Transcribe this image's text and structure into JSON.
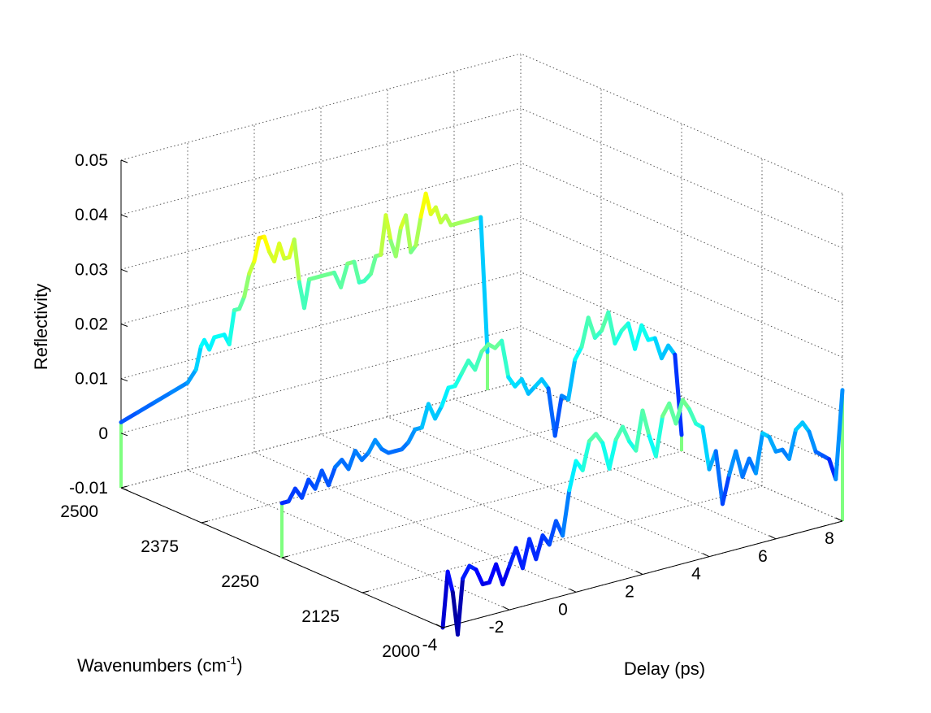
{
  "chart_data": {
    "type": "line",
    "projection": "3d",
    "colormap": "jet",
    "color_range": [
      -0.01,
      0.05
    ],
    "grid": true,
    "title": "",
    "xlabel": "Delay (ps)",
    "ylabel": "Wavenumbers (cm-1)",
    "ylabel_main": "Wavenumbers (cm",
    "ylabel_sup": "-1",
    "ylabel_end": ")",
    "zlabel": "Reflectivity",
    "xlim": [
      -4,
      8
    ],
    "ylim": [
      2000,
      2500
    ],
    "zlim": [
      -0.01,
      0.05
    ],
    "xticks": [
      "-4",
      "-2",
      "0",
      "2",
      "4",
      "6",
      "8"
    ],
    "yticks": [
      "2000",
      "2125",
      "2250",
      "2375",
      "2500"
    ],
    "zticks": [
      "-0.01",
      "0",
      "0.01",
      "0.02",
      "0.03",
      "0.04",
      "0.05"
    ],
    "series": [
      {
        "wavenumber": 2500,
        "x": [
          -4.0,
          -3.5,
          -3.0,
          -2.5,
          -2.0,
          -1.75,
          -1.6,
          -1.5,
          -1.35,
          -1.2,
          -1.05,
          -0.9,
          -0.75,
          -0.6,
          -0.45,
          -0.3,
          -0.15,
          0.0,
          0.15,
          0.3,
          0.45,
          0.6,
          0.75,
          0.9,
          1.05,
          1.2,
          1.35,
          1.5,
          1.65,
          1.8,
          2.0,
          2.2,
          2.4,
          2.6,
          2.8,
          3.0,
          3.15,
          3.3,
          3.5,
          3.65,
          3.8,
          3.95,
          4.1,
          4.25,
          4.4,
          4.55,
          4.7,
          4.85,
          5.0,
          5.15,
          5.3,
          5.45,
          5.6,
          5.75,
          5.9,
          6.05,
          6.2,
          6.4,
          6.6,
          6.8,
          7.0
        ],
        "z": [
          0.002,
          0.003,
          0.004,
          0.005,
          0.006,
          0.008,
          0.012,
          0.013,
          0.011,
          0.013,
          0.013,
          0.013,
          0.011,
          0.017,
          0.017,
          0.019,
          0.023,
          0.025,
          0.029,
          0.029,
          0.026,
          0.024,
          0.027,
          0.024,
          0.024,
          0.027,
          0.019,
          0.014,
          0.019,
          0.019,
          0.019,
          0.019,
          0.019,
          0.016,
          0.02,
          0.02,
          0.016,
          0.016,
          0.017,
          0.02,
          0.02,
          0.027,
          0.022,
          0.019,
          0.024,
          0.026,
          0.019,
          0.02,
          0.025,
          0.029,
          0.025,
          0.026,
          0.023,
          0.024,
          0.022,
          0.022,
          0.022,
          0.022,
          0.022,
          0.022,
          -0.003
        ]
      },
      {
        "wavenumber": 2250,
        "x": [
          -4.0,
          -3.8,
          -3.6,
          -3.4,
          -3.2,
          -3.0,
          -2.8,
          -2.6,
          -2.4,
          -2.2,
          -2.0,
          -1.8,
          -1.6,
          -1.4,
          -1.2,
          -1.0,
          -0.8,
          -0.6,
          -0.4,
          -0.2,
          0.0,
          0.2,
          0.4,
          0.6,
          0.8,
          1.0,
          1.2,
          1.4,
          1.6,
          1.8,
          2.0,
          2.2,
          2.4,
          2.6,
          2.8,
          3.0,
          3.2,
          3.4,
          3.6,
          3.8,
          4.0,
          4.2,
          4.4,
          4.6,
          4.8,
          5.0,
          5.2,
          5.4,
          5.6,
          5.8,
          6.0,
          6.2,
          6.4,
          6.6,
          6.8,
          7.0,
          7.2,
          7.4,
          7.6,
          7.8,
          8.0
        ],
        "z": [
          0.0,
          0.0,
          0.002,
          0.0,
          0.003,
          0.001,
          0.004,
          0.001,
          0.004,
          0.005,
          0.003,
          0.006,
          0.004,
          0.005,
          0.007,
          0.005,
          0.004,
          0.004,
          0.004,
          0.005,
          0.007,
          0.007,
          0.011,
          0.008,
          0.01,
          0.013,
          0.013,
          0.015,
          0.017,
          0.015,
          0.018,
          0.019,
          0.018,
          0.019,
          0.012,
          0.01,
          0.011,
          0.008,
          0.009,
          0.01,
          0.008,
          -0.001,
          0.006,
          0.005,
          0.012,
          0.014,
          0.019,
          0.015,
          0.016,
          0.019,
          0.013,
          0.015,
          0.016,
          0.011,
          0.015,
          0.012,
          0.012,
          0.008,
          0.01,
          0.008,
          -0.007
        ]
      },
      {
        "wavenumber": 2000,
        "x": [
          -4.0,
          -3.85,
          -3.7,
          -3.55,
          -3.4,
          -3.2,
          -3.0,
          -2.8,
          -2.6,
          -2.4,
          -2.2,
          -2.0,
          -1.8,
          -1.6,
          -1.4,
          -1.2,
          -1.0,
          -0.8,
          -0.6,
          -0.4,
          -0.2,
          0.0,
          0.2,
          0.4,
          0.6,
          0.8,
          1.0,
          1.2,
          1.4,
          1.6,
          1.8,
          2.0,
          2.2,
          2.4,
          2.6,
          2.8,
          3.0,
          3.2,
          3.4,
          3.6,
          3.8,
          4.0,
          4.2,
          4.4,
          4.6,
          4.8,
          5.0,
          5.2,
          5.4,
          5.6,
          5.8,
          6.0,
          6.2,
          6.4,
          6.6,
          6.8,
          7.0,
          7.2,
          7.4,
          7.6,
          7.8,
          8.0
        ],
        "z": [
          -0.01,
          0.0,
          -0.004,
          -0.012,
          -0.002,
          0.0,
          -0.001,
          -0.004,
          -0.004,
          -0.001,
          -0.005,
          -0.002,
          0.001,
          -0.003,
          0.002,
          -0.002,
          0.002,
          0.0,
          0.004,
          0.001,
          0.009,
          0.014,
          0.012,
          0.017,
          0.018,
          0.016,
          0.011,
          0.016,
          0.018,
          0.015,
          0.013,
          0.02,
          0.015,
          0.011,
          0.018,
          0.02,
          0.016,
          0.02,
          0.018,
          0.015,
          0.014,
          0.006,
          0.009,
          -0.001,
          0.004,
          0.008,
          0.003,
          0.006,
          0.003,
          0.01,
          0.009,
          0.006,
          0.006,
          0.004,
          0.009,
          0.01,
          0.008,
          0.004,
          0.003,
          0.002,
          -0.002,
          0.014
        ]
      }
    ]
  }
}
